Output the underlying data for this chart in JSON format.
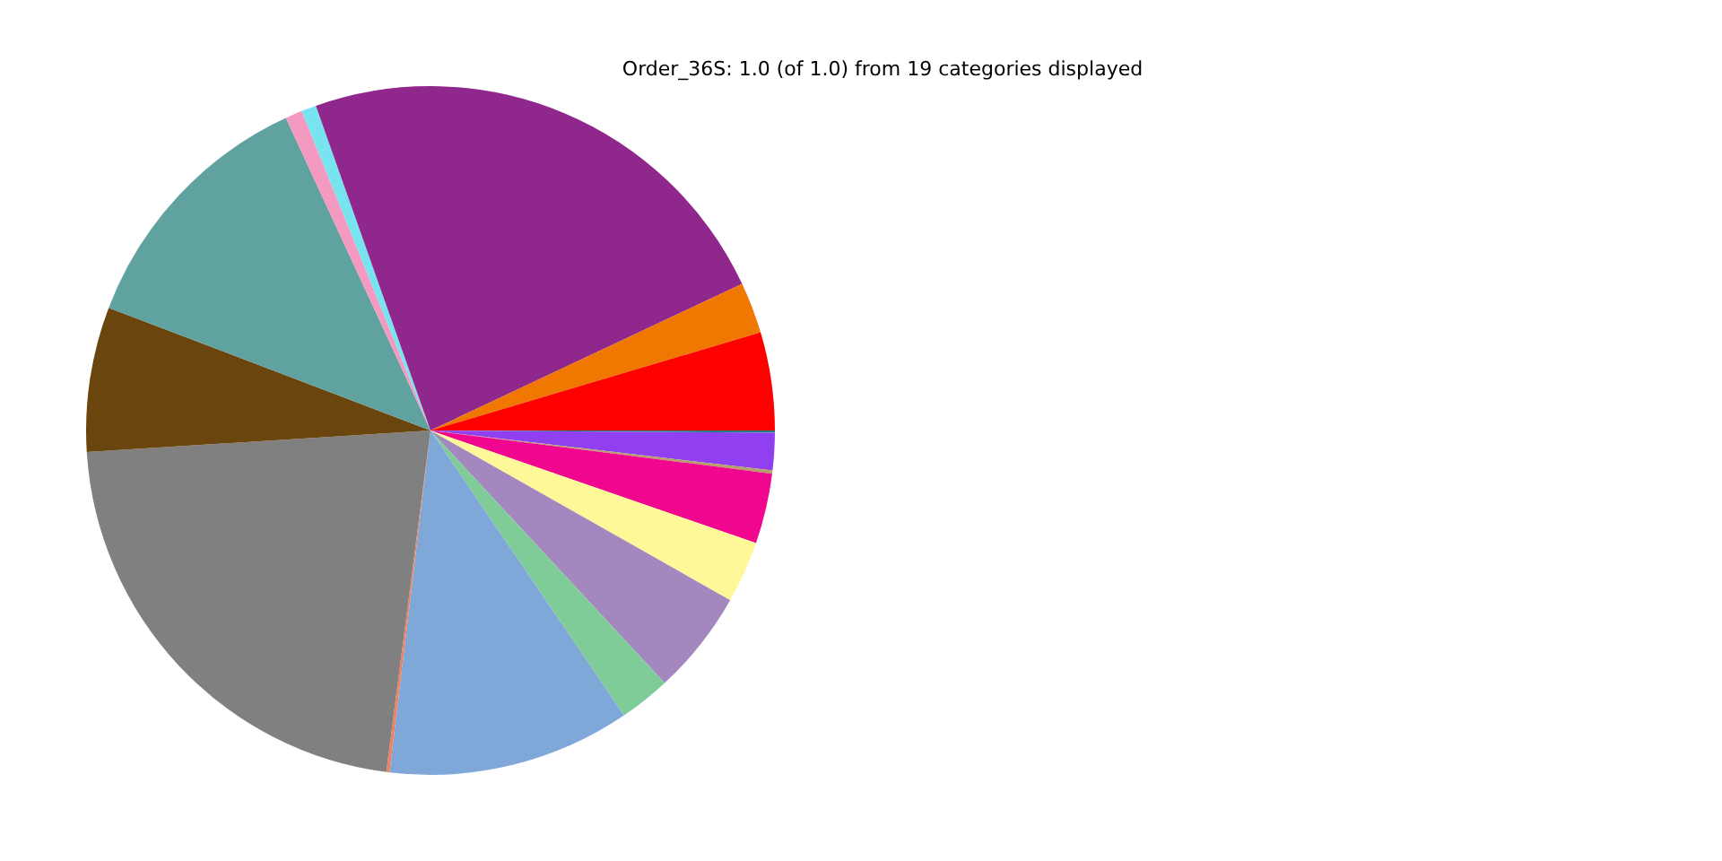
{
  "chart_data": {
    "type": "pie",
    "title": "Order_36S: 1.0 (of 1.0) from 19 categories displayed",
    "categories": [
      null,
      null,
      null,
      null,
      null,
      null,
      null,
      null,
      null,
      null,
      null,
      null,
      null,
      null,
      null,
      null,
      null
    ],
    "values": [
      0.1,
      1.75,
      0.15,
      3.3,
      2.9,
      4.9,
      2.4,
      11.4,
      0.15,
      21.95,
      6.8,
      12.3,
      0.8,
      0.7,
      23.4,
      2.4,
      4.6
    ],
    "colors": [
      "#1f7f7f",
      "#9040f0",
      "#b5a06a",
      "#f0068f",
      "#fff899",
      "#a487bf",
      "#80cc99",
      "#7fa8d8",
      "#f08060",
      "#808080",
      "#6b450e",
      "#5fa29f",
      "#f49ac1",
      "#78e4f0",
      "#90278c",
      "#f07800",
      "#ff0000"
    ],
    "legend": false
  }
}
